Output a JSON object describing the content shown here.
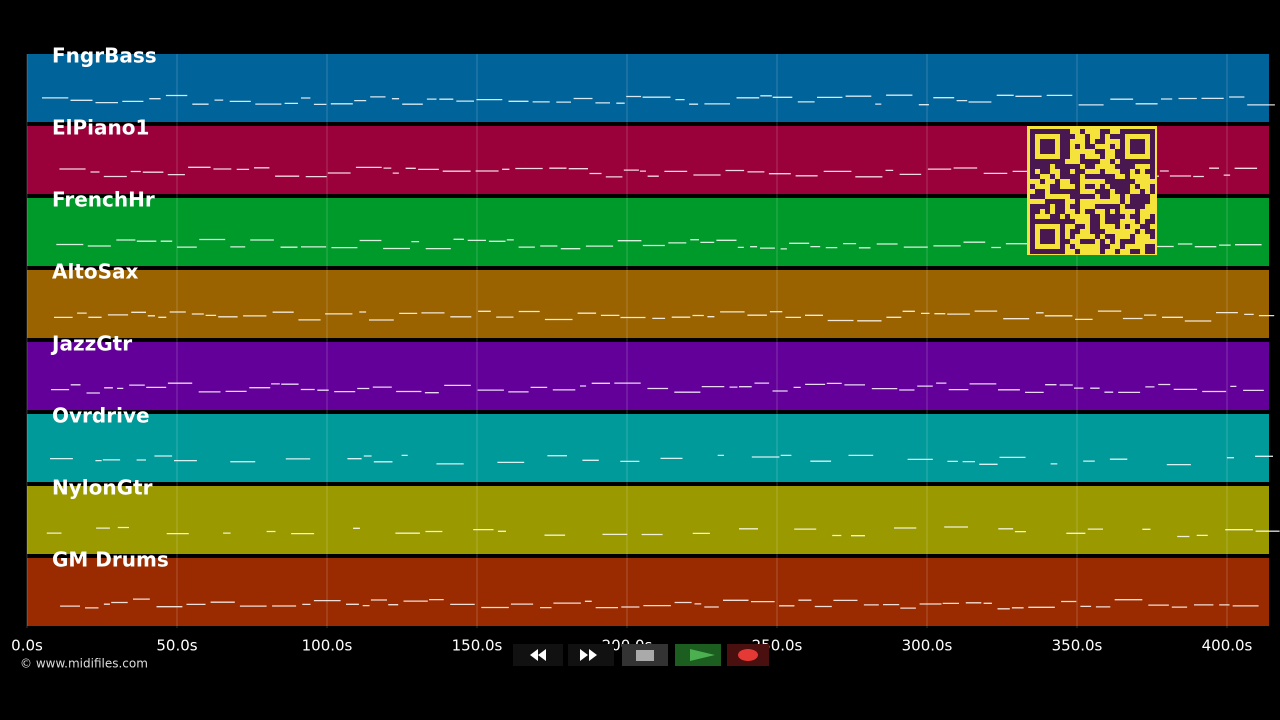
{
  "tracks": [
    {
      "name": "FngrBass",
      "color": "#00639a"
    },
    {
      "name": "ElPiano1",
      "color": "#9a0039"
    },
    {
      "name": "FrenchHr",
      "color": "#009a2b"
    },
    {
      "name": "AltoSax",
      "color": "#9a6300"
    },
    {
      "name": "JazzGtr",
      "color": "#63009a"
    },
    {
      "name": "Ovrdrive",
      "color": "#009a9a"
    },
    {
      "name": "NylonGtr",
      "color": "#9a9a00"
    },
    {
      "name": "GM Drums",
      "color": "#9a2b00"
    }
  ],
  "timeline": {
    "xlim": [
      0,
      414
    ],
    "ticks": [
      {
        "value": 0,
        "label": "0.0s"
      },
      {
        "value": 50,
        "label": "50.0s"
      },
      {
        "value": 100,
        "label": "100.0s"
      },
      {
        "value": 150,
        "label": "150.0s"
      },
      {
        "value": 200,
        "label": "200.0s"
      },
      {
        "value": 250,
        "label": "250.0s"
      },
      {
        "value": 300,
        "label": "300.0s"
      },
      {
        "value": 350,
        "label": "350.0s"
      },
      {
        "value": 400,
        "label": "400.0s"
      }
    ]
  },
  "footer": {
    "copyright": "© www.midifiles.com"
  }
}
